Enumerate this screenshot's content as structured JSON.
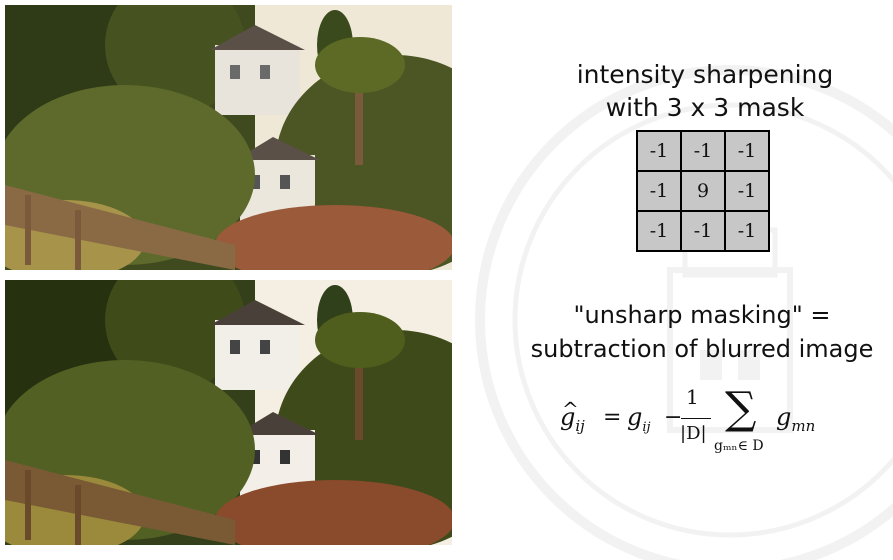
{
  "images": {
    "original_alt": "Hillside photo with houses and palm tree",
    "sharpened_alt": "Sharpened hillside photo with houses and palm tree"
  },
  "sharpening": {
    "title_line1": "intensity sharpening",
    "title_line2": "with 3 x 3 mask",
    "mask": [
      [
        "-1",
        "-1",
        "-1"
      ],
      [
        "-1",
        "9",
        "-1"
      ],
      [
        "-1",
        "-1",
        "-1"
      ]
    ]
  },
  "unsharp": {
    "line1": "\"unsharp masking\" =",
    "line2": "subtraction of blurred image"
  },
  "formula": {
    "lhs": "g",
    "lhs_hat": "^",
    "lhs_sub": "ij",
    "equals": "=",
    "g": "g",
    "g_sub": "ij",
    "minus": "−",
    "numerator": "1",
    "denominator": "|D|",
    "sum": "∑",
    "sum_sub": "gₘₙ∈ D",
    "term": "g",
    "term_sub": "mn"
  },
  "colors": {
    "mask_fill": "#c7c7c7",
    "sky": "#f2ece0"
  }
}
